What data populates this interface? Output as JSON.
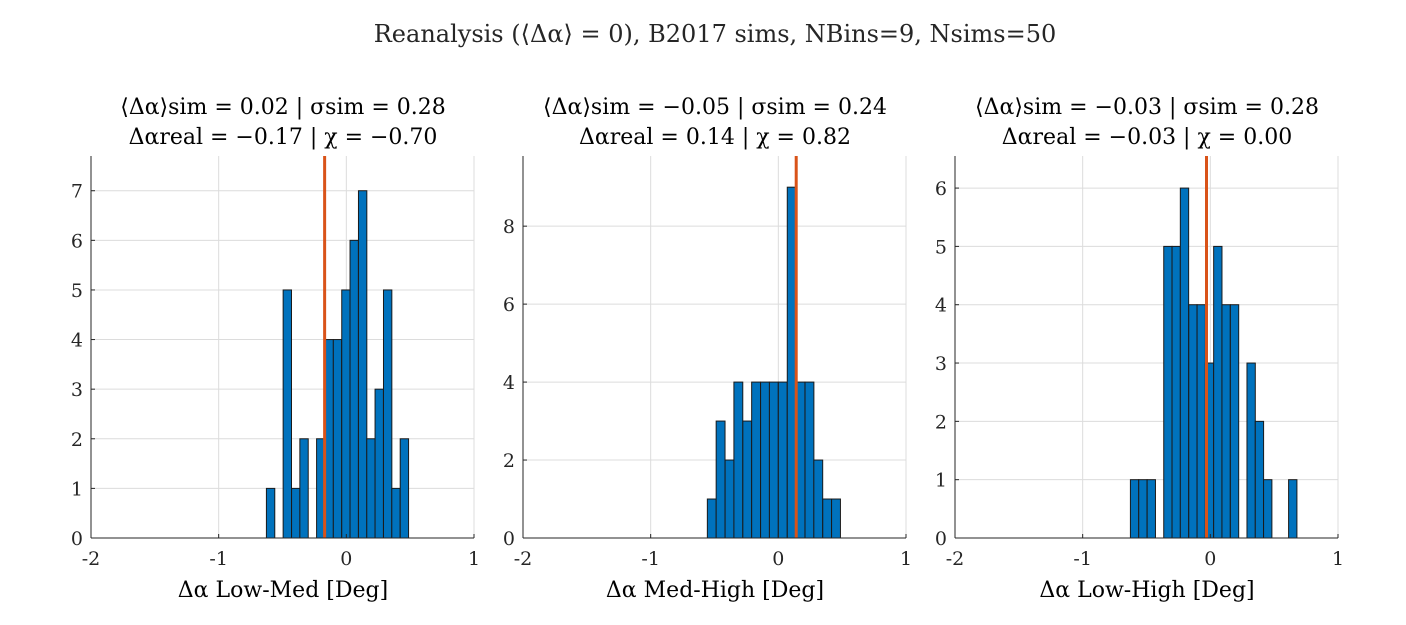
{
  "figure": {
    "suptitle": "Reanalysis (⟨Δα⟩ = 0), B2017 sims, NBins=9, Nsims=50"
  },
  "colors": {
    "bar_fill": "#0072BD",
    "bar_edge": "#1a1a1a",
    "marker_line": "#D95319",
    "grid": "#dcdcdc",
    "axis": "#262626"
  },
  "chart_data": [
    {
      "type": "bar",
      "title_line1": "⟨Δα⟩sim = 0.02 | σsim = 0.28",
      "title_line2": "Δαreal = −0.17 | χ = −0.70",
      "xlabel": "Δα Low-Med [Deg]",
      "ylabel": "",
      "xlim": [
        -2,
        1
      ],
      "ylim": [
        0,
        7.7
      ],
      "xticks": [
        -2,
        -1,
        0,
        1
      ],
      "yticks": [
        0,
        1,
        2,
        3,
        4,
        5,
        6,
        7
      ],
      "grid": true,
      "bin_width": 0.0655,
      "bins": [
        {
          "x0": -0.626,
          "count": 1
        },
        {
          "x0": -0.495,
          "count": 5
        },
        {
          "x0": -0.429,
          "count": 1
        },
        {
          "x0": -0.364,
          "count": 2
        },
        {
          "x0": -0.233,
          "count": 2
        },
        {
          "x0": -0.167,
          "count": 4
        },
        {
          "x0": -0.102,
          "count": 4
        },
        {
          "x0": -0.036,
          "count": 5
        },
        {
          "x0": 0.029,
          "count": 6
        },
        {
          "x0": 0.095,
          "count": 7
        },
        {
          "x0": 0.16,
          "count": 2
        },
        {
          "x0": 0.225,
          "count": 3
        },
        {
          "x0": 0.291,
          "count": 5
        },
        {
          "x0": 0.356,
          "count": 1
        },
        {
          "x0": 0.422,
          "count": 2
        }
      ],
      "real_value": -0.17
    },
    {
      "type": "bar",
      "title_line1": "⟨Δα⟩sim = −0.05 | σsim = 0.24",
      "title_line2": "Δαreal = 0.14 | χ = 0.82",
      "xlabel": "Δα Med-High [Deg]",
      "ylabel": "",
      "xlim": [
        -2,
        1
      ],
      "ylim": [
        0,
        9.8
      ],
      "xticks": [
        -2,
        -1,
        0,
        1
      ],
      "yticks": [
        0,
        2,
        4,
        6,
        8
      ],
      "grid": true,
      "bin_width": 0.0695,
      "bins": [
        {
          "x0": -0.556,
          "count": 1
        },
        {
          "x0": -0.487,
          "count": 3
        },
        {
          "x0": -0.417,
          "count": 2
        },
        {
          "x0": -0.348,
          "count": 4
        },
        {
          "x0": -0.278,
          "count": 3
        },
        {
          "x0": -0.209,
          "count": 4
        },
        {
          "x0": -0.139,
          "count": 4
        },
        {
          "x0": -0.07,
          "count": 4
        },
        {
          "x0": 0.0,
          "count": 4
        },
        {
          "x0": 0.07,
          "count": 9
        },
        {
          "x0": 0.139,
          "count": 4
        },
        {
          "x0": 0.209,
          "count": 4
        },
        {
          "x0": 0.278,
          "count": 2
        },
        {
          "x0": 0.348,
          "count": 1
        },
        {
          "x0": 0.417,
          "count": 1
        }
      ],
      "real_value": 0.14
    },
    {
      "type": "bar",
      "title_line1": "⟨Δα⟩sim = −0.03 | σsim = 0.28",
      "title_line2": "Δαreal = −0.03 | χ = 0.00",
      "xlabel": "Δα Low-High [Deg]",
      "ylabel": "",
      "xlim": [
        -2,
        1
      ],
      "ylim": [
        0,
        6.55
      ],
      "xticks": [
        -2,
        -1,
        0,
        1
      ],
      "yticks": [
        0,
        1,
        2,
        3,
        4,
        5,
        6
      ],
      "grid": true,
      "bin_width": 0.0652,
      "bins": [
        {
          "x0": -0.626,
          "count": 1
        },
        {
          "x0": -0.561,
          "count": 1
        },
        {
          "x0": -0.495,
          "count": 1
        },
        {
          "x0": -0.365,
          "count": 5
        },
        {
          "x0": -0.3,
          "count": 5
        },
        {
          "x0": -0.235,
          "count": 6
        },
        {
          "x0": -0.169,
          "count": 4
        },
        {
          "x0": -0.104,
          "count": 4
        },
        {
          "x0": -0.039,
          "count": 3
        },
        {
          "x0": 0.026,
          "count": 5
        },
        {
          "x0": 0.091,
          "count": 4
        },
        {
          "x0": 0.157,
          "count": 4
        },
        {
          "x0": 0.287,
          "count": 3
        },
        {
          "x0": 0.352,
          "count": 2
        },
        {
          "x0": 0.417,
          "count": 1
        },
        {
          "x0": 0.613,
          "count": 1
        }
      ],
      "real_value": -0.03
    }
  ]
}
